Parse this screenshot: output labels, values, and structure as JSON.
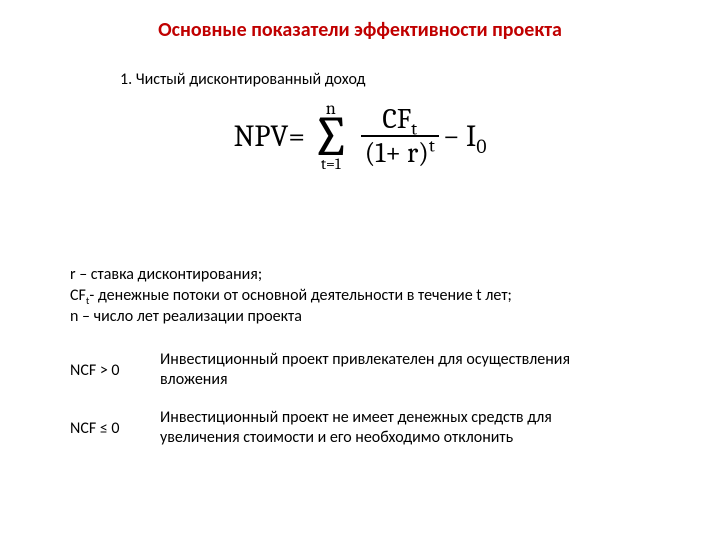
{
  "title": {
    "text": "Основные показатели эффективности проекта",
    "color": "#c00000",
    "fontsize": 20,
    "fontweight": "bold"
  },
  "subtitle": {
    "text": "1. Чистый дисконтированный доход",
    "fontsize": 16
  },
  "formula": {
    "lhs": "NPV",
    "eq": " = ",
    "sigma_upper": "n",
    "sigma_lower": "t=1",
    "frac_num_base": "CF",
    "frac_num_sub": "t",
    "frac_den_base": "(1+ r)",
    "frac_den_sup": "t",
    "tail_minus": " − I",
    "tail_sub": "0",
    "font_family": "Cambria, Times New Roman, serif",
    "base_fontsize": 30,
    "sigma_fontsize": 56
  },
  "definitions": {
    "line1_pre": "r – ставка дисконтирования;",
    "line2_base": "CF",
    "line2_sub": "t",
    "line2_rest": "- денежные потоки от основной деятельности в течение t лет;",
    "line3": "n – число лет реализации проекта",
    "fontsize": 16
  },
  "conditions": [
    {
      "label": "NCF > 0",
      "text": "Инвестиционный проект привлекателен для осуществления вложения"
    },
    {
      "label": "NCF ≤ 0",
      "text": "Инвестиционный проект не имеет денежных средств для увеличения стоимости и его необходимо отклонить"
    }
  ],
  "colors": {
    "background": "#ffffff",
    "text": "#000000",
    "title": "#c00000"
  }
}
